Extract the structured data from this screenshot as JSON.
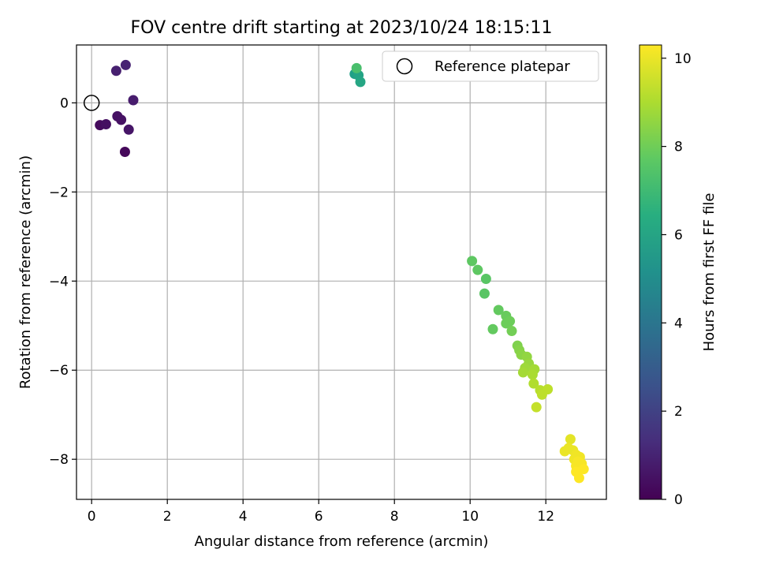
{
  "chart_data": {
    "type": "scatter",
    "title": "FOV centre drift starting at 2023/10/24 18:15:11",
    "xlabel": "Angular distance from reference (arcmin)",
    "ylabel": "Rotation from reference (arcmin)",
    "xlim": [
      -0.4,
      13.6
    ],
    "ylim": [
      -8.9,
      1.3
    ],
    "xticks": [
      0,
      2,
      4,
      6,
      8,
      10,
      12
    ],
    "yticks": [
      0,
      -2,
      -4,
      -6,
      -8
    ],
    "xtick_labels": [
      "0",
      "2",
      "4",
      "6",
      "8",
      "10",
      "12"
    ],
    "ytick_labels": [
      "0",
      "−2",
      "−4",
      "−6",
      "−8"
    ],
    "grid": true,
    "colormap": "viridis",
    "colorbar": {
      "label": "Hours from first FF file",
      "range": [
        0,
        10.3
      ],
      "ticks": [
        0,
        2,
        4,
        6,
        8,
        10
      ],
      "tick_labels": [
        "0",
        "2",
        "4",
        "6",
        "8",
        "10"
      ]
    },
    "reference_point": {
      "x": 0,
      "y": 0,
      "legend_label": "Reference platepar"
    },
    "legend_position": "top-right",
    "points": [
      {
        "x": 0.9,
        "y": 0.85,
        "h": 1.0
      },
      {
        "x": 0.65,
        "y": 0.72,
        "h": 0.9
      },
      {
        "x": 1.1,
        "y": 0.06,
        "h": 0.8
      },
      {
        "x": 0.22,
        "y": -0.5,
        "h": 0.3
      },
      {
        "x": 0.38,
        "y": -0.48,
        "h": 0.4
      },
      {
        "x": 0.68,
        "y": -0.3,
        "h": 0.5
      },
      {
        "x": 0.78,
        "y": -0.38,
        "h": 0.5
      },
      {
        "x": 0.98,
        "y": -0.6,
        "h": 0.6
      },
      {
        "x": 0.88,
        "y": -1.1,
        "h": 0.2
      },
      {
        "x": 6.95,
        "y": 0.65,
        "h": 5.8
      },
      {
        "x": 7.05,
        "y": 0.62,
        "h": 6.0
      },
      {
        "x": 7.1,
        "y": 0.47,
        "h": 6.1
      },
      {
        "x": 7.0,
        "y": 0.78,
        "h": 7.3
      },
      {
        "x": 10.05,
        "y": -3.55,
        "h": 7.7
      },
      {
        "x": 10.2,
        "y": -3.75,
        "h": 7.7
      },
      {
        "x": 10.42,
        "y": -3.95,
        "h": 7.6
      },
      {
        "x": 10.38,
        "y": -4.28,
        "h": 7.6
      },
      {
        "x": 10.75,
        "y": -4.65,
        "h": 7.8
      },
      {
        "x": 10.95,
        "y": -4.78,
        "h": 7.9
      },
      {
        "x": 11.05,
        "y": -4.9,
        "h": 8.0
      },
      {
        "x": 10.95,
        "y": -4.95,
        "h": 8.0
      },
      {
        "x": 10.6,
        "y": -5.08,
        "h": 7.8
      },
      {
        "x": 11.1,
        "y": -5.12,
        "h": 8.1
      },
      {
        "x": 11.25,
        "y": -5.45,
        "h": 8.3
      },
      {
        "x": 11.3,
        "y": -5.55,
        "h": 8.4
      },
      {
        "x": 11.35,
        "y": -5.65,
        "h": 8.5
      },
      {
        "x": 11.5,
        "y": -5.7,
        "h": 8.6
      },
      {
        "x": 11.55,
        "y": -5.85,
        "h": 8.7
      },
      {
        "x": 11.45,
        "y": -5.95,
        "h": 8.8
      },
      {
        "x": 11.7,
        "y": -5.98,
        "h": 8.9
      },
      {
        "x": 11.4,
        "y": -6.05,
        "h": 8.9
      },
      {
        "x": 11.65,
        "y": -6.1,
        "h": 9.0
      },
      {
        "x": 11.68,
        "y": -6.3,
        "h": 9.1
      },
      {
        "x": 11.85,
        "y": -6.45,
        "h": 9.2
      },
      {
        "x": 12.05,
        "y": -6.43,
        "h": 9.3
      },
      {
        "x": 11.9,
        "y": -6.55,
        "h": 9.3
      },
      {
        "x": 11.75,
        "y": -6.83,
        "h": 9.4
      },
      {
        "x": 12.65,
        "y": -7.55,
        "h": 9.9
      },
      {
        "x": 12.6,
        "y": -7.75,
        "h": 10.0
      },
      {
        "x": 12.5,
        "y": -7.82,
        "h": 10.0
      },
      {
        "x": 12.72,
        "y": -7.8,
        "h": 10.0
      },
      {
        "x": 12.8,
        "y": -7.9,
        "h": 10.1
      },
      {
        "x": 12.9,
        "y": -7.95,
        "h": 10.1
      },
      {
        "x": 12.75,
        "y": -8.0,
        "h": 10.1
      },
      {
        "x": 12.85,
        "y": -8.05,
        "h": 10.2
      },
      {
        "x": 12.95,
        "y": -8.1,
        "h": 10.2
      },
      {
        "x": 12.8,
        "y": -8.15,
        "h": 10.2
      },
      {
        "x": 12.9,
        "y": -8.2,
        "h": 10.2
      },
      {
        "x": 13.0,
        "y": -8.22,
        "h": 10.3
      },
      {
        "x": 12.8,
        "y": -8.28,
        "h": 10.3
      },
      {
        "x": 12.88,
        "y": -8.42,
        "h": 10.3
      }
    ]
  }
}
